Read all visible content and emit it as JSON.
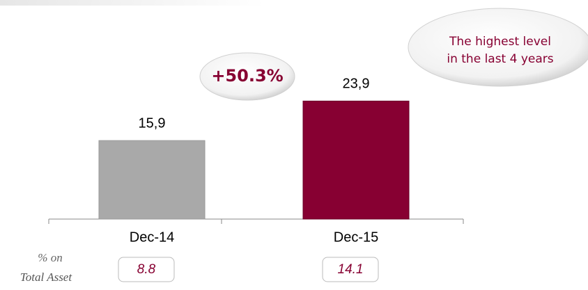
{
  "chart_data": {
    "type": "bar",
    "categories": [
      "Dec-14",
      "Dec-15"
    ],
    "values": [
      15.9,
      23.9
    ],
    "value_labels": [
      "15,9",
      "23,9"
    ],
    "colors": [
      "#a9a9a9",
      "#870032"
    ],
    "change_label": "+50.3%",
    "callout": [
      "The highest level",
      "in the last 4 years"
    ],
    "ratio_title": [
      "% on",
      "Total Asset"
    ],
    "ratios": [
      8.8,
      14.1
    ]
  }
}
